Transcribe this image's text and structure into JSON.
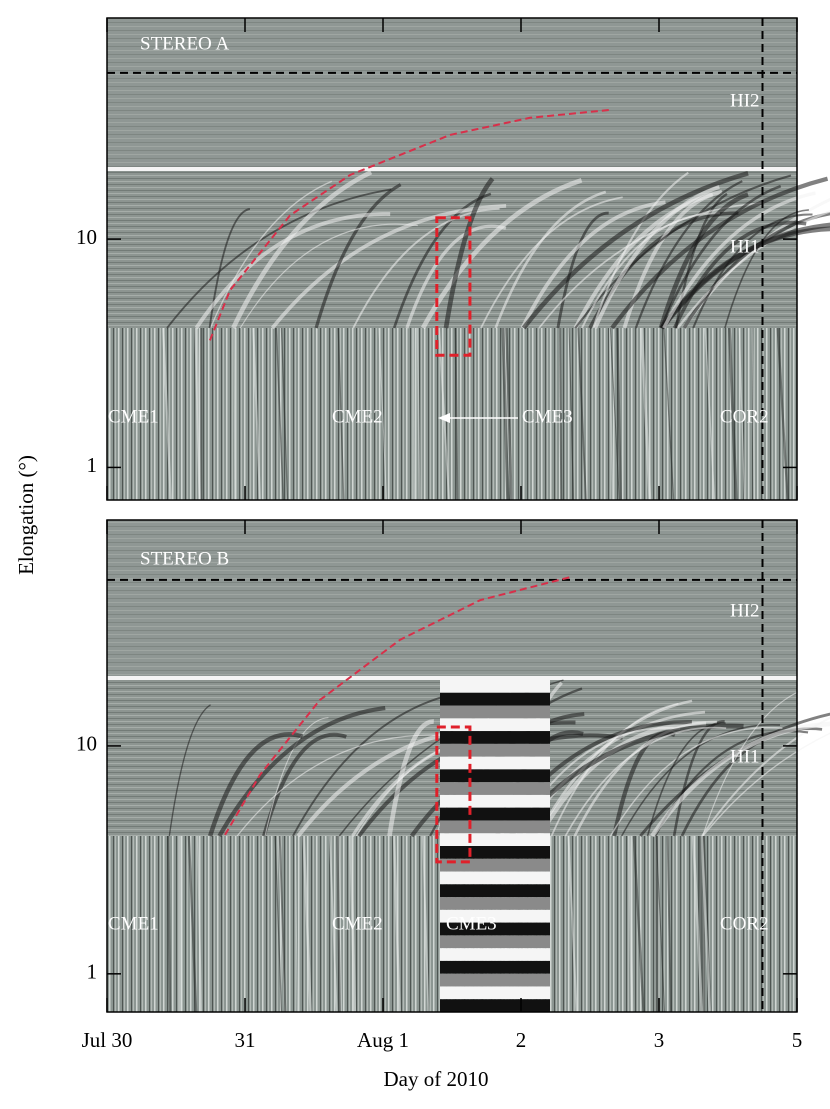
{
  "chart_data": [
    {
      "type": "jmap",
      "y_label": "Elongation (°)",
      "log_y": true,
      "annotations": [
        "STEREO A",
        "HI2",
        "HI1",
        "CME1",
        "CME2",
        "CME3",
        "COR2"
      ],
      "xlim": [
        0,
        5
      ],
      "ylim": [
        0.72,
        93
      ],
      "yticks": [
        1,
        10
      ],
      "hline": 53.5,
      "vline": 4.75,
      "track": {
        "color": "#d8304a",
        "x": [
          0.746,
          0.891,
          1.326,
          1.761,
          2.486,
          3.065,
          3.645
        ],
        "values": [
          3.6,
          5.97,
          12.7,
          19.1,
          28.6,
          34.0,
          36.8
        ]
      },
      "box": {
        "color": "#e0202a",
        "x": [
          2.39,
          2.63
        ],
        "y": [
          3.1,
          12.4
        ]
      }
    },
    {
      "type": "jmap",
      "x_label": "Day of 2010",
      "log_y": true,
      "annotations": [
        "STEREO B",
        "HI2",
        "HI1",
        "CME1",
        "CME2",
        "CME3",
        "COR2"
      ],
      "xlim": [
        0,
        5
      ],
      "xticks": [
        {
          "value": 0,
          "label": "Jul 30"
        },
        {
          "value": 1,
          "label": "31"
        },
        {
          "value": 2,
          "label": "Aug 1"
        },
        {
          "value": 3,
          "label": "2"
        },
        {
          "value": 4,
          "label": "3"
        },
        5
      ],
      "ylim": [
        0.68,
        98
      ],
      "yticks": [
        1,
        10
      ],
      "hline": 53.5,
      "vline": 4.75,
      "track": {
        "color": "#d8304a",
        "x": [
          0.855,
          1.109,
          1.543,
          2.123,
          2.703,
          3.355
        ],
        "values": [
          4.07,
          7.47,
          15.9,
          29.2,
          43.6,
          55
        ]
      },
      "box": {
        "color": "#e0202a",
        "x": [
          2.39,
          2.63
        ],
        "y": [
          3.1,
          12.1
        ]
      }
    }
  ]
}
